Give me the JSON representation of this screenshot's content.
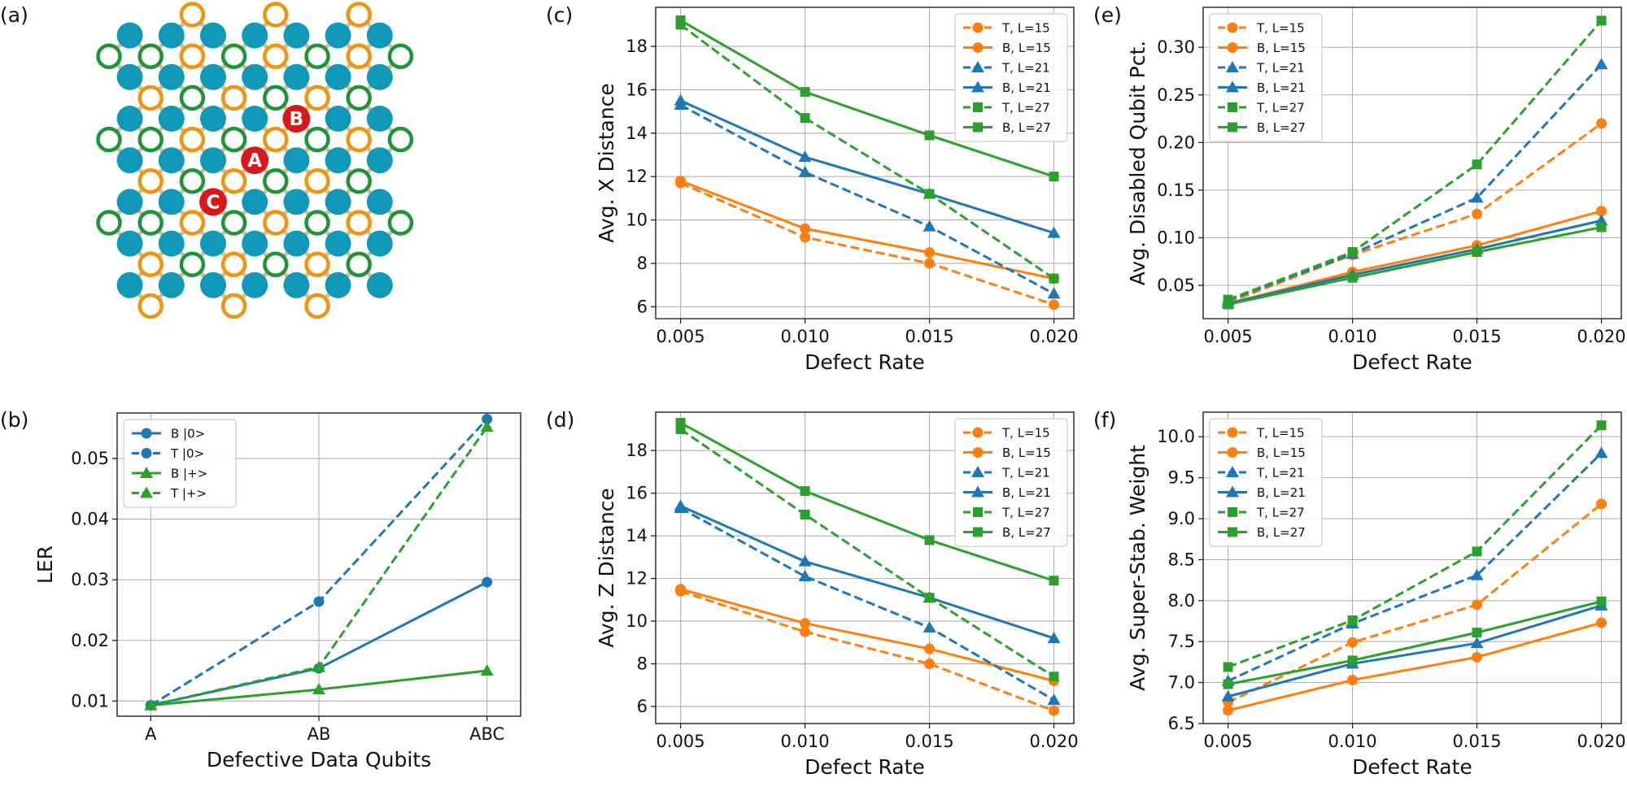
{
  "figure": {
    "panel_labels": [
      "(a)",
      "(b)",
      "(c)",
      "(d)",
      "(e)",
      "(f)"
    ]
  },
  "lattice": {
    "defect_markers": [
      {
        "label": "A",
        "color": "#d7191c"
      },
      {
        "label": "B",
        "color": "#d7191c"
      },
      {
        "label": "C",
        "color": "#d7191c"
      }
    ],
    "colors": {
      "data": "#0f98b8",
      "ancilla_orange": "#f0940f",
      "ancilla_green": "#1e9439",
      "edge": "#d6bc94"
    }
  },
  "chart_data": [
    {
      "id": "b",
      "type": "line",
      "xlabel": "Defective Data Qubits",
      "ylabel": "LER",
      "categories": [
        "A",
        "AB",
        "ABC"
      ],
      "ylim": [
        0.0075,
        0.0575
      ],
      "yticks": [
        0.01,
        0.02,
        0.03,
        0.04,
        0.05
      ],
      "ytick_labels": [
        "0.01",
        "0.02",
        "0.03",
        "0.04",
        "0.05"
      ],
      "legend_position": "top-left",
      "series": [
        {
          "name": "B |0>",
          "color": "#1f77b4",
          "dash": false,
          "marker": "circle",
          "values": [
            0.0093,
            0.0154,
            0.0296
          ]
        },
        {
          "name": "T |0>",
          "color": "#1f77b4",
          "dash": true,
          "marker": "circle",
          "values": [
            0.0093,
            0.0264,
            0.0565
          ]
        },
        {
          "name": "B |+>",
          "color": "#2ca02c",
          "dash": false,
          "marker": "triangle",
          "values": [
            0.0093,
            0.0119,
            0.015
          ]
        },
        {
          "name": "T |+>",
          "color": "#2ca02c",
          "dash": true,
          "marker": "triangle",
          "values": [
            0.0093,
            0.0156,
            0.0552
          ]
        }
      ]
    },
    {
      "id": "c",
      "type": "line",
      "xlabel": "Defect Rate",
      "ylabel": "Avg. X Distance",
      "x": [
        0.005,
        0.01,
        0.015,
        0.02
      ],
      "xtick_labels": [
        "0.005",
        "0.010",
        "0.015",
        "0.020"
      ],
      "xlim": [
        0.004,
        0.0208
      ],
      "ylim": [
        5.45,
        19.8
      ],
      "yticks": [
        6,
        8,
        10,
        12,
        14,
        16,
        18
      ],
      "ytick_labels": [
        "6",
        "8",
        "10",
        "12",
        "14",
        "16",
        "18"
      ],
      "legend_position": "top-right",
      "series": [
        {
          "name": "T, L=15",
          "color": "#ff7f0e",
          "dash": true,
          "marker": "circle",
          "values": [
            11.7,
            9.2,
            8.0,
            6.1
          ]
        },
        {
          "name": "B, L=15",
          "color": "#ff7f0e",
          "dash": false,
          "marker": "circle",
          "values": [
            11.8,
            9.6,
            8.5,
            7.3
          ]
        },
        {
          "name": "T, L=21",
          "color": "#1f77b4",
          "dash": true,
          "marker": "triangle",
          "values": [
            15.3,
            12.2,
            9.7,
            6.6
          ]
        },
        {
          "name": "B, L=21",
          "color": "#1f77b4",
          "dash": false,
          "marker": "triangle",
          "values": [
            15.5,
            12.9,
            11.2,
            9.4
          ]
        },
        {
          "name": "T, L=27",
          "color": "#2ca02c",
          "dash": true,
          "marker": "square",
          "values": [
            19.0,
            14.7,
            11.2,
            7.3
          ]
        },
        {
          "name": "B, L=27",
          "color": "#2ca02c",
          "dash": false,
          "marker": "square",
          "values": [
            19.2,
            15.9,
            13.9,
            12.0
          ]
        }
      ]
    },
    {
      "id": "d",
      "type": "line",
      "xlabel": "Defect Rate",
      "ylabel": "Avg. Z Distance",
      "x": [
        0.005,
        0.01,
        0.015,
        0.02
      ],
      "xtick_labels": [
        "0.005",
        "0.010",
        "0.015",
        "0.020"
      ],
      "xlim": [
        0.004,
        0.0208
      ],
      "ylim": [
        5.2,
        19.8
      ],
      "yticks": [
        6,
        8,
        10,
        12,
        14,
        16,
        18
      ],
      "ytick_labels": [
        "6",
        "8",
        "10",
        "12",
        "14",
        "16",
        "18"
      ],
      "legend_position": "top-right",
      "series": [
        {
          "name": "T, L=15",
          "color": "#ff7f0e",
          "dash": true,
          "marker": "circle",
          "values": [
            11.4,
            9.5,
            8.0,
            5.8
          ]
        },
        {
          "name": "B, L=15",
          "color": "#ff7f0e",
          "dash": false,
          "marker": "circle",
          "values": [
            11.5,
            9.9,
            8.7,
            7.2
          ]
        },
        {
          "name": "T, L=21",
          "color": "#1f77b4",
          "dash": true,
          "marker": "triangle",
          "values": [
            15.3,
            12.1,
            9.7,
            6.3
          ]
        },
        {
          "name": "B, L=21",
          "color": "#1f77b4",
          "dash": false,
          "marker": "triangle",
          "values": [
            15.4,
            12.8,
            11.1,
            9.2
          ]
        },
        {
          "name": "T, L=27",
          "color": "#2ca02c",
          "dash": true,
          "marker": "square",
          "values": [
            19.0,
            15.0,
            11.1,
            7.4
          ]
        },
        {
          "name": "B, L=27",
          "color": "#2ca02c",
          "dash": false,
          "marker": "square",
          "values": [
            19.3,
            16.1,
            13.8,
            11.9
          ]
        }
      ]
    },
    {
      "id": "e",
      "type": "line",
      "xlabel": "Defect Rate",
      "ylabel": "Avg. Disabled Qubit Pct.",
      "x": [
        0.005,
        0.01,
        0.015,
        0.02
      ],
      "xtick_labels": [
        "0.005",
        "0.010",
        "0.015",
        "0.020"
      ],
      "xlim": [
        0.004,
        0.0208
      ],
      "ylim": [
        0.015,
        0.342
      ],
      "yticks": [
        0.05,
        0.1,
        0.15,
        0.2,
        0.25,
        0.3
      ],
      "ytick_labels": [
        "0.05",
        "0.10",
        "0.15",
        "0.20",
        "0.25",
        "0.30"
      ],
      "legend_position": "top-left",
      "series": [
        {
          "name": "T, L=15",
          "color": "#ff7f0e",
          "dash": true,
          "marker": "circle",
          "values": [
            0.032,
            0.082,
            0.125,
            0.22
          ]
        },
        {
          "name": "B, L=15",
          "color": "#ff7f0e",
          "dash": false,
          "marker": "circle",
          "values": [
            0.031,
            0.064,
            0.092,
            0.128
          ]
        },
        {
          "name": "T, L=21",
          "color": "#1f77b4",
          "dash": true,
          "marker": "triangle",
          "values": [
            0.034,
            0.083,
            0.142,
            0.282
          ]
        },
        {
          "name": "B, L=21",
          "color": "#1f77b4",
          "dash": false,
          "marker": "triangle",
          "values": [
            0.031,
            0.061,
            0.088,
            0.118
          ]
        },
        {
          "name": "T, L=27",
          "color": "#2ca02c",
          "dash": true,
          "marker": "square",
          "values": [
            0.035,
            0.085,
            0.177,
            0.328
          ]
        },
        {
          "name": "B, L=27",
          "color": "#2ca02c",
          "dash": false,
          "marker": "square",
          "values": [
            0.03,
            0.058,
            0.085,
            0.111
          ]
        }
      ]
    },
    {
      "id": "f",
      "type": "line",
      "xlabel": "Defect Rate",
      "ylabel": "Avg. Super-Stab. Weight",
      "x": [
        0.005,
        0.01,
        0.015,
        0.02
      ],
      "xtick_labels": [
        "0.005",
        "0.010",
        "0.015",
        "0.020"
      ],
      "xlim": [
        0.004,
        0.0208
      ],
      "ylim": [
        6.5,
        10.3
      ],
      "yticks": [
        6.5,
        7.0,
        7.5,
        8.0,
        8.5,
        9.0,
        9.5,
        10.0
      ],
      "ytick_labels": [
        "6.5",
        "7.0",
        "7.5",
        "8.0",
        "8.5",
        "9.0",
        "9.5",
        "10.0"
      ],
      "legend_position": "top-left",
      "series": [
        {
          "name": "T, L=15",
          "color": "#ff7f0e",
          "dash": true,
          "marker": "circle",
          "values": [
            6.76,
            7.49,
            7.95,
            9.18
          ]
        },
        {
          "name": "B, L=15",
          "color": "#ff7f0e",
          "dash": false,
          "marker": "circle",
          "values": [
            6.66,
            7.03,
            7.31,
            7.73
          ]
        },
        {
          "name": "T, L=21",
          "color": "#1f77b4",
          "dash": true,
          "marker": "triangle",
          "values": [
            7.02,
            7.72,
            8.31,
            9.8
          ]
        },
        {
          "name": "B, L=21",
          "color": "#1f77b4",
          "dash": false,
          "marker": "triangle",
          "values": [
            6.83,
            7.23,
            7.48,
            7.94
          ]
        },
        {
          "name": "T, L=27",
          "color": "#2ca02c",
          "dash": true,
          "marker": "square",
          "values": [
            7.19,
            7.76,
            8.6,
            10.14
          ]
        },
        {
          "name": "B, L=27",
          "color": "#2ca02c",
          "dash": false,
          "marker": "square",
          "values": [
            6.98,
            7.27,
            7.61,
            7.99
          ]
        }
      ]
    }
  ]
}
